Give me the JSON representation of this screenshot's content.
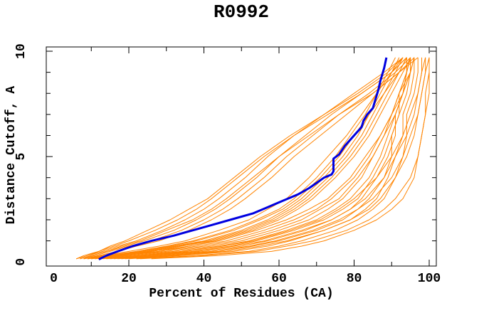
{
  "page": {
    "title": "R0992"
  },
  "chart_data": {
    "type": "line",
    "title": "R0992",
    "xlabel": "Percent of Residues (CA)",
    "ylabel": "Distance Cutoff, A",
    "xlim": [
      -2,
      102
    ],
    "ylim": [
      -0.2,
      10.2
    ],
    "grid": "off",
    "legend": "none",
    "colors": {
      "model": "#ff8400",
      "highlight": "#0000e0",
      "axis": "#000000",
      "background": "#ffffff"
    },
    "x_axis": {
      "label": "Percent of Residues (CA)",
      "tick_labels": [
        {
          "v": 0,
          "t": "0"
        },
        {
          "v": 20,
          "t": "20"
        },
        {
          "v": 40,
          "t": "40"
        },
        {
          "v": 60,
          "t": "60"
        },
        {
          "v": 80,
          "t": "80"
        },
        {
          "v": 100,
          "t": "100"
        }
      ],
      "major_ticks": [
        20,
        40,
        60,
        80,
        100
      ],
      "minor_ticks": [
        10,
        30,
        50,
        70,
        90
      ]
    },
    "y_axis": {
      "label": "Distance Cutoff, A",
      "tick_labels": [
        {
          "v": 0,
          "t": "0"
        },
        {
          "v": 5,
          "t": "5"
        },
        {
          "v": 10,
          "t": "10"
        }
      ],
      "major_ticks": [
        5,
        10
      ],
      "minor_ticks": [
        1,
        2,
        3,
        4,
        6,
        7,
        8,
        9
      ]
    },
    "cutoffs": [
      0.15,
      0.3,
      0.5,
      0.75,
      1,
      1.5,
      2,
      2.5,
      3,
      4,
      5,
      6,
      7,
      8,
      9,
      9.7
    ],
    "model_series": [
      {
        "name": "model-01",
        "pcts": [
          22,
          38,
          52,
          60,
          66,
          75,
          81,
          85,
          88,
          91,
          93,
          94,
          94,
          96,
          97,
          97
        ]
      },
      {
        "name": "model-02",
        "pcts": [
          20,
          34,
          48,
          57,
          63,
          72,
          79,
          83,
          86,
          89,
          91,
          93,
          93,
          95,
          96,
          96
        ]
      },
      {
        "name": "model-03",
        "pcts": [
          18,
          30,
          44,
          53,
          60,
          70,
          77,
          81,
          84,
          88,
          90,
          90,
          92,
          94,
          95,
          96
        ]
      },
      {
        "name": "model-04",
        "pcts": [
          16,
          27,
          40,
          50,
          57,
          67,
          74,
          79,
          82,
          86,
          89,
          91,
          91,
          93,
          94,
          95
        ]
      },
      {
        "name": "model-05",
        "pcts": [
          14,
          24,
          37,
          47,
          54,
          64,
          72,
          77,
          81,
          85,
          88,
          90,
          92,
          92,
          95,
          95
        ]
      },
      {
        "name": "model-06",
        "pcts": [
          12,
          22,
          34,
          44,
          52,
          62,
          70,
          75,
          79,
          84,
          87,
          89,
          91,
          93,
          94,
          94
        ]
      },
      {
        "name": "model-07",
        "pcts": [
          11,
          20,
          32,
          42,
          50,
          60,
          68,
          73,
          77,
          82,
          85,
          88,
          90,
          92,
          94,
          95
        ]
      },
      {
        "name": "model-08",
        "pcts": [
          10,
          18,
          30,
          40,
          48,
          58,
          66,
          71,
          76,
          81,
          85,
          88,
          91,
          93,
          95,
          95
        ]
      },
      {
        "name": "model-09",
        "pcts": [
          9,
          16,
          28,
          38,
          46,
          56,
          64,
          70,
          74,
          80,
          84,
          87,
          90,
          92,
          94,
          94
        ]
      },
      {
        "name": "model-10",
        "pcts": [
          8,
          15,
          26,
          36,
          44,
          54,
          62,
          68,
          73,
          79,
          83,
          87,
          90,
          93,
          95,
          96
        ]
      },
      {
        "name": "model-11",
        "pcts": [
          26,
          44,
          58,
          66,
          72,
          80,
          86,
          90,
          93,
          96,
          97,
          98,
          99,
          100,
          100,
          100
        ]
      },
      {
        "name": "model-12",
        "pcts": [
          23,
          40,
          54,
          62,
          69,
          78,
          84,
          88,
          91,
          95,
          97,
          98,
          99,
          99,
          100,
          100
        ]
      },
      {
        "name": "model-13",
        "pcts": [
          19,
          32,
          46,
          55,
          62,
          72,
          79,
          84,
          87,
          91,
          94,
          96,
          97,
          98,
          99,
          99
        ]
      },
      {
        "name": "model-14",
        "pcts": [
          15,
          26,
          38,
          48,
          56,
          66,
          74,
          79,
          83,
          88,
          91,
          94,
          96,
          97,
          98,
          98
        ]
      },
      {
        "name": "model-15",
        "pcts": [
          13,
          23,
          35,
          45,
          53,
          63,
          71,
          76,
          80,
          86,
          90,
          93,
          95,
          97,
          98,
          99
        ]
      },
      {
        "name": "model-16",
        "pcts": [
          17,
          29,
          42,
          52,
          59,
          69,
          76,
          81,
          85,
          90,
          93,
          95,
          97,
          98,
          99,
          100
        ]
      },
      {
        "name": "model-17",
        "pcts": [
          10,
          16,
          24,
          32,
          40,
          50,
          57,
          62,
          66,
          72,
          77,
          81,
          84,
          87,
          90,
          92
        ]
      },
      {
        "name": "model-18",
        "pcts": [
          9,
          14,
          22,
          30,
          37,
          47,
          54,
          60,
          64,
          70,
          75,
          79,
          83,
          86,
          89,
          91
        ]
      },
      {
        "name": "model-19",
        "pcts": [
          8,
          13,
          20,
          28,
          35,
          44,
          52,
          57,
          62,
          68,
          73,
          78,
          82,
          86,
          90,
          93
        ]
      },
      {
        "name": "model-20",
        "pcts": [
          11,
          17,
          25,
          33,
          41,
          51,
          58,
          63,
          67,
          73,
          78,
          82,
          85,
          88,
          91,
          93
        ]
      },
      {
        "name": "model-21",
        "pcts": [
          9,
          15,
          23,
          31,
          38,
          48,
          55,
          61,
          65,
          71,
          76,
          80,
          84,
          88,
          92,
          94
        ]
      },
      {
        "name": "model-22",
        "pcts": [
          12,
          19,
          28,
          36,
          43,
          53,
          60,
          65,
          69,
          75,
          80,
          84,
          87,
          90,
          93,
          95
        ]
      },
      {
        "name": "model-23",
        "pcts": [
          10,
          17,
          26,
          34,
          42,
          52,
          59,
          64,
          68,
          74,
          79,
          83,
          86,
          89,
          92,
          94
        ]
      },
      {
        "name": "model-24",
        "pcts": [
          7,
          10,
          14,
          19,
          24,
          32,
          38,
          43,
          47,
          54,
          60,
          67,
          74,
          82,
          90,
          94
        ]
      },
      {
        "name": "model-25",
        "pcts": [
          6,
          9,
          13,
          17,
          22,
          29,
          35,
          40,
          44,
          51,
          57,
          64,
          72,
          80,
          88,
          93
        ]
      },
      {
        "name": "model-26",
        "pcts": [
          7,
          11,
          15,
          20,
          26,
          34,
          40,
          45,
          49,
          56,
          62,
          69,
          76,
          84,
          91,
          95
        ]
      },
      {
        "name": "model-27",
        "pcts": [
          6,
          8,
          12,
          16,
          20,
          27,
          33,
          38,
          42,
          49,
          56,
          64,
          73,
          82,
          90,
          94
        ]
      },
      {
        "name": "model-28",
        "pcts": [
          8,
          12,
          17,
          22,
          28,
          36,
          42,
          47,
          51,
          58,
          64,
          71,
          78,
          85,
          92,
          96
        ]
      },
      {
        "name": "model-29",
        "pcts": [
          6,
          9,
          12,
          15,
          19,
          25,
          31,
          36,
          41,
          48,
          55,
          63,
          72,
          81,
          89,
          93
        ]
      },
      {
        "name": "model-30",
        "pcts": [
          7,
          10,
          14,
          18,
          23,
          30,
          37,
          42,
          46,
          53,
          60,
          68,
          76,
          85,
          92,
          97
        ]
      }
    ],
    "highlight_series": {
      "name": "highlighted-model",
      "points": [
        [
          12,
          0.12
        ],
        [
          14,
          0.3
        ],
        [
          17,
          0.5
        ],
        [
          21,
          0.75
        ],
        [
          26,
          1
        ],
        [
          32,
          1.25
        ],
        [
          37,
          1.5
        ],
        [
          42,
          1.75
        ],
        [
          47,
          2
        ],
        [
          53,
          2.3
        ],
        [
          57,
          2.6
        ],
        [
          61,
          2.9
        ],
        [
          65,
          3.2
        ],
        [
          68,
          3.5
        ],
        [
          70,
          3.75
        ],
        [
          72,
          4
        ],
        [
          74,
          4.15
        ],
        [
          74.5,
          4.3
        ],
        [
          74.5,
          4.9
        ],
        [
          76,
          5.1
        ],
        [
          77.5,
          5.5
        ],
        [
          79,
          5.8
        ],
        [
          80.5,
          6.1
        ],
        [
          82,
          6.4
        ],
        [
          82.5,
          6.7
        ],
        [
          83.5,
          7
        ],
        [
          85,
          7.3
        ],
        [
          85.5,
          7.6
        ],
        [
          86,
          7.9
        ],
        [
          86.5,
          8.2
        ],
        [
          87,
          8.6
        ],
        [
          87.5,
          8.9
        ],
        [
          88,
          9.2
        ],
        [
          88.3,
          9.45
        ],
        [
          88.6,
          9.7
        ]
      ]
    }
  }
}
